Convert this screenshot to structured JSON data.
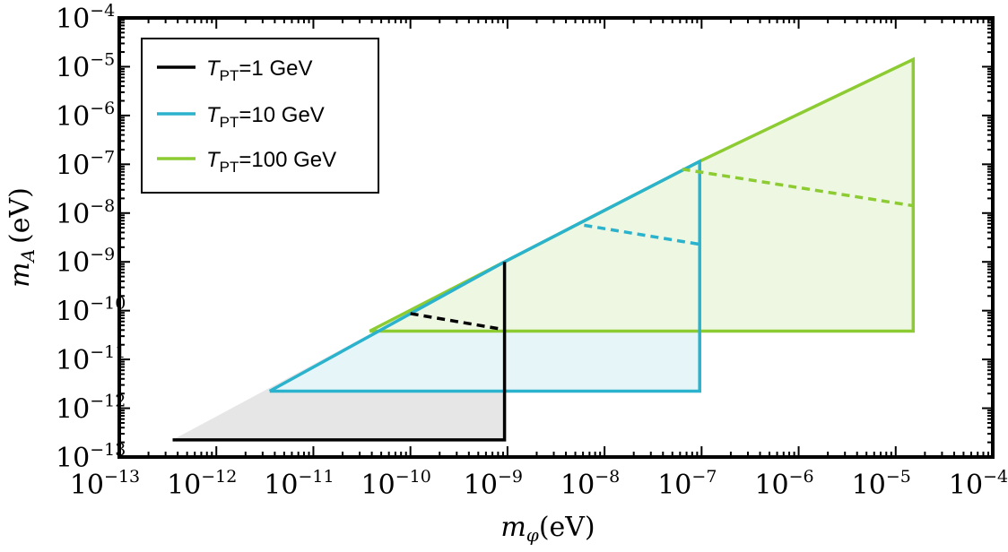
{
  "chart_data": {
    "type": "area",
    "title": "",
    "xlabel": {
      "symbol": "m",
      "sub": "φ",
      "unit": "(eV)"
    },
    "ylabel": {
      "symbol": "m",
      "sub": "A",
      "unit": "(eV)"
    },
    "xscale": "log",
    "yscale": "log",
    "xlim_exp": [
      -13,
      -4
    ],
    "ylim_exp": [
      -13,
      -4
    ],
    "x_ticks": [
      {
        "base": "10",
        "exp": "−13"
      },
      {
        "base": "10",
        "exp": "−12"
      },
      {
        "base": "10",
        "exp": "−11"
      },
      {
        "base": "10",
        "exp": "−10"
      },
      {
        "base": "10",
        "exp": "−9"
      },
      {
        "base": "10",
        "exp": "−8"
      },
      {
        "base": "10",
        "exp": "−7"
      },
      {
        "base": "10",
        "exp": "−6"
      },
      {
        "base": "10",
        "exp": "−5"
      },
      {
        "base": "10",
        "exp": "−4"
      }
    ],
    "y_ticks": [
      {
        "base": "10",
        "exp": "−13"
      },
      {
        "base": "10",
        "exp": "−12"
      },
      {
        "base": "10",
        "exp": "−11"
      },
      {
        "base": "10",
        "exp": "−10"
      },
      {
        "base": "10",
        "exp": "−9"
      },
      {
        "base": "10",
        "exp": "−8"
      },
      {
        "base": "10",
        "exp": "−7"
      },
      {
        "base": "10",
        "exp": "−6"
      },
      {
        "base": "10",
        "exp": "−5"
      },
      {
        "base": "10",
        "exp": "−4"
      }
    ],
    "grid": false,
    "legend": {
      "position": "top-left"
    },
    "series": [
      {
        "name": "T_PT=1 GeV",
        "legend_symbol": "T",
        "legend_sub": "PT",
        "legend_rest": "=1 GeV",
        "color": "#000000",
        "fill": "#e6e6e6",
        "region_log10": [
          [
            -12.45,
            -12.65
          ],
          [
            -9.03,
            -12.65
          ],
          [
            -9.03,
            -9.0
          ]
        ],
        "dashed_log10": [
          [
            -10.0,
            -10.06
          ],
          [
            -9.03,
            -10.39
          ]
        ]
      },
      {
        "name": "T_PT=10 GeV",
        "legend_symbol": "T",
        "legend_sub": "PT",
        "legend_rest": "=10 GeV",
        "color": "#2bb2cc",
        "fill": "#e6f5f8",
        "region_log10": [
          [
            -11.45,
            -11.65
          ],
          [
            -7.02,
            -11.65
          ],
          [
            -7.02,
            -6.94
          ],
          [
            -9.03,
            -9.0
          ],
          [
            -11.45,
            -11.65
          ]
        ],
        "dashed_log10": [
          [
            -8.21,
            -8.25
          ],
          [
            -7.02,
            -8.64
          ]
        ]
      },
      {
        "name": "T_PT=100 GeV",
        "legend_symbol": "T",
        "legend_sub": "PT",
        "legend_rest": "=100 GeV",
        "color": "#8ccc32",
        "fill": "#eef7e1",
        "region_log10": [
          [
            -10.42,
            -10.42
          ],
          [
            -4.82,
            -10.42
          ],
          [
            -4.82,
            -4.85
          ],
          [
            -7.02,
            -6.94
          ],
          [
            -9.03,
            -9.0
          ],
          [
            -10.42,
            -10.42
          ]
        ],
        "dashed_log10": [
          [
            -7.2,
            -7.1
          ],
          [
            -4.82,
            -7.85
          ]
        ]
      }
    ]
  }
}
